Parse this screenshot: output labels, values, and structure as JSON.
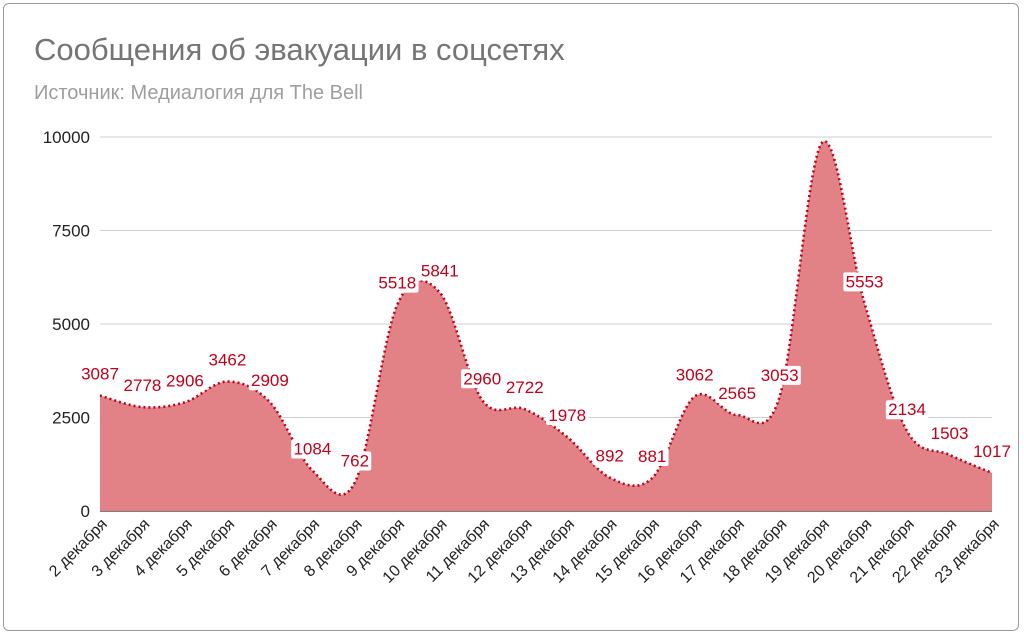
{
  "chart_data": {
    "type": "area",
    "title": "Сообщения об эвакуации в соцсетях",
    "subtitle": "Источник: Медиалогия для The Bell",
    "categories": [
      "2 декабря",
      "3 декабря",
      "4 декабря",
      "5 декабря",
      "6 декабря",
      "7 декабря",
      "8 декабря",
      "9 декабря",
      "10 декабря",
      "11 декабря",
      "12 декабря",
      "13 декабря",
      "14 декабря",
      "15 декабря",
      "16 декабря",
      "17 декабря",
      "18 декабря",
      "19 декабря",
      "20 декабря",
      "21 декабря",
      "22 декабря",
      "23 декабря"
    ],
    "values": [
      3087,
      2778,
      2906,
      3462,
      2909,
      1084,
      762,
      5518,
      5841,
      2960,
      2722,
      1978,
      892,
      881,
      3062,
      2565,
      3053,
      9850,
      5553,
      2134,
      1503,
      1017
    ],
    "labels": [
      "3087",
      "2778",
      "2906",
      "3462",
      "2909",
      "1084",
      "762",
      "5518",
      "5841",
      "2960",
      "2722",
      "1978",
      "892",
      "881",
      "3062",
      "2565",
      "3053",
      "",
      "5553",
      "2134",
      "1503",
      "1017"
    ],
    "ylim": [
      0,
      10000
    ],
    "yticks": [
      0,
      2500,
      5000,
      7500,
      10000
    ],
    "ytick_labels": [
      "0",
      "2500",
      "5000",
      "7500",
      "10000"
    ],
    "grid": true,
    "legend": "none",
    "colors": {
      "fill": "#e07b7f",
      "line": "#c0001a",
      "text": "#c0001a"
    }
  }
}
